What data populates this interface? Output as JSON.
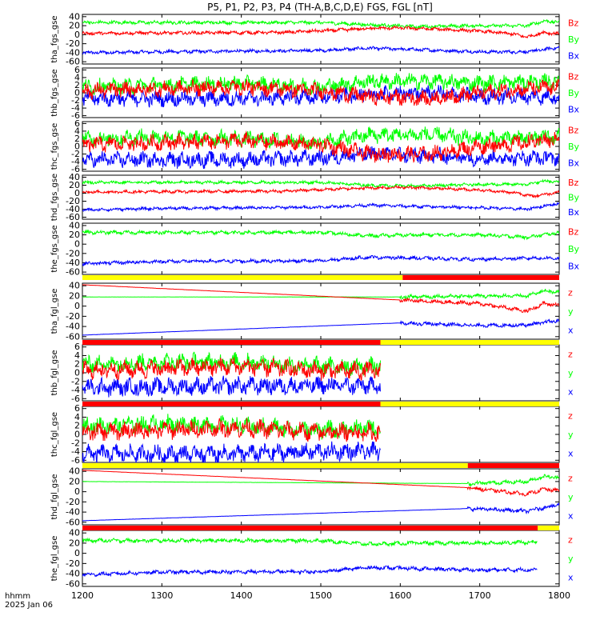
{
  "chart_data": {
    "type": "line",
    "title": "P5, P1, P2, P3, P4 (TH-A,B,C,D,E) FGS, FGL [nT]",
    "x_axis": {
      "label_lines": [
        "hhmm",
        "2025 Jan 06"
      ],
      "ticks": [
        "1200",
        "1300",
        "1400",
        "1500",
        "1600",
        "1700",
        "1800"
      ],
      "tick_values": [
        1200,
        1300,
        1400,
        1500,
        1600,
        1700,
        1800
      ],
      "range": [
        1200,
        1800
      ]
    },
    "colors": {
      "x": "#0000ff",
      "y": "#00ff00",
      "z": "#ff0000",
      "bar_yellow": "#ffff00",
      "bar_red": "#ff0000"
    },
    "panels": [
      {
        "ylabel": "tha_fgs_gse",
        "ylim": [
          -65,
          45
        ],
        "yticks": [
          40,
          20,
          0,
          -20,
          -40,
          -60
        ],
        "legend": [
          "Bz",
          "By",
          "Bx"
        ],
        "x_end": 1800,
        "noise": 3,
        "series": [
          {
            "name": "Bz",
            "color_key": "z",
            "x": [
              1200,
              1450,
              1520,
              1560,
              1600,
              1650,
              1700,
              1740,
              1760,
              1780,
              1800
            ],
            "y": [
              3,
              5,
              10,
              14,
              15,
              12,
              8,
              2,
              -5,
              5,
              2
            ]
          },
          {
            "name": "By",
            "color_key": "y",
            "x": [
              1200,
              1500,
              1560,
              1620,
              1700,
              1760,
              1780,
              1800
            ],
            "y": [
              27,
              27,
              22,
              18,
              20,
              20,
              30,
              28
            ]
          },
          {
            "name": "Bx",
            "color_key": "x",
            "x": [
              1200,
              1300,
              1500,
              1560,
              1620,
              1700,
              1760,
              1780,
              1800
            ],
            "y": [
              -40,
              -38,
              -35,
              -30,
              -33,
              -38,
              -38,
              -33,
              -28
            ]
          }
        ]
      },
      {
        "ylabel": "thb_fgs_gse",
        "ylim": [
          -6.5,
          6.5
        ],
        "yticks": [
          6,
          4,
          2,
          0,
          -2,
          -4,
          -6
        ],
        "legend": [
          "Bz",
          "By",
          "Bx"
        ],
        "x_end": 1800,
        "noise": 1.6,
        "series": [
          {
            "name": "Bz",
            "color_key": "z",
            "x": [
              1200,
              1300,
              1400,
              1500,
              1560,
              1640,
              1700,
              1760,
              1800
            ],
            "y": [
              0.5,
              1,
              1.5,
              0.5,
              -1,
              -1.5,
              0,
              1,
              1.5
            ]
          },
          {
            "name": "By",
            "color_key": "y",
            "x": [
              1200,
              1300,
              1400,
              1500,
              1560,
              1640,
              1700,
              1800
            ],
            "y": [
              1.5,
              2,
              2.5,
              1.5,
              3,
              3,
              2.5,
              3
            ]
          },
          {
            "name": "Bx",
            "color_key": "x",
            "x": [
              1200,
              1400,
              1500,
              1560,
              1640,
              1700,
              1800
            ],
            "y": [
              -1.5,
              -1.5,
              -1,
              -0.5,
              0,
              -1,
              -1
            ]
          }
        ]
      },
      {
        "ylabel": "thc_fgs_gse",
        "ylim": [
          -6.5,
          6.5
        ],
        "yticks": [
          6,
          4,
          2,
          0,
          -2,
          -4,
          -6
        ],
        "legend": [
          "Bz",
          "By",
          "Bx"
        ],
        "x_end": 1800,
        "noise": 1.6,
        "series": [
          {
            "name": "Bz",
            "color_key": "z",
            "x": [
              1200,
              1300,
              1400,
              1500,
              1560,
              1640,
              1700,
              1760,
              1800
            ],
            "y": [
              0.5,
              1,
              1.5,
              0.5,
              -2,
              -2,
              0,
              1,
              2
            ]
          },
          {
            "name": "By",
            "color_key": "y",
            "x": [
              1200,
              1300,
              1400,
              1500,
              1560,
              1640,
              1700,
              1800
            ],
            "y": [
              2,
              2.5,
              2,
              1,
              3,
              3,
              2,
              2.5
            ]
          },
          {
            "name": "Bx",
            "color_key": "x",
            "x": [
              1200,
              1400,
              1500,
              1560,
              1640,
              1700,
              1800
            ],
            "y": [
              -3.5,
              -3.5,
              -3,
              -2,
              -2.5,
              -3,
              -3
            ]
          }
        ]
      },
      {
        "ylabel": "thd_fgs_gse",
        "ylim": [
          -65,
          45
        ],
        "yticks": [
          40,
          20,
          0,
          -20,
          -40,
          -60
        ],
        "legend": [
          "Bz",
          "By",
          "Bx"
        ],
        "x_end": 1800,
        "noise": 3,
        "series": [
          {
            "name": "Bz",
            "color_key": "z",
            "x": [
              1200,
              1450,
              1540,
              1600,
              1650,
              1700,
              1750,
              1765,
              1800
            ],
            "y": [
              3,
              5,
              12,
              15,
              12,
              8,
              0,
              -8,
              3
            ]
          },
          {
            "name": "By",
            "color_key": "y",
            "x": [
              1200,
              1500,
              1560,
              1620,
              1700,
              1760,
              1780,
              1800
            ],
            "y": [
              27,
              27,
              20,
              18,
              22,
              22,
              30,
              28
            ]
          },
          {
            "name": "Bx",
            "color_key": "x",
            "x": [
              1200,
              1300,
              1500,
              1560,
              1640,
              1700,
              1760,
              1800
            ],
            "y": [
              -42,
              -38,
              -35,
              -30,
              -34,
              -36,
              -40,
              -25
            ]
          }
        ]
      },
      {
        "ylabel": "the_fgs_gse",
        "ylim": [
          -65,
          45
        ],
        "yticks": [
          40,
          20,
          0,
          -20,
          -40,
          -60
        ],
        "legend": [
          "Bz",
          "By",
          "Bx"
        ],
        "x_end": 1800,
        "noise": 3,
        "series": [
          {
            "name": "By",
            "color_key": "y",
            "x": [
              1200,
              1500,
              1560,
              1620,
              1700,
              1760,
              1800
            ],
            "y": [
              25,
              25,
              18,
              20,
              20,
              15,
              25
            ]
          },
          {
            "name": "Bx",
            "color_key": "x",
            "x": [
              1200,
              1300,
              1500,
              1560,
              1620,
              1700,
              1760,
              1800
            ],
            "y": [
              -42,
              -37,
              -36,
              -28,
              -30,
              -33,
              -30,
              -30
            ]
          }
        ]
      },
      {
        "ylabel": "tha_fgl_gse",
        "ylim": [
          -65,
          45
        ],
        "yticks": [
          40,
          20,
          0,
          -20,
          -40,
          -60
        ],
        "legend": [
          "z",
          "y",
          "x"
        ],
        "x_end": 1800,
        "noise": 3,
        "noisy_from": 1600,
        "series": [
          {
            "name": "z",
            "color_key": "z",
            "x": [
              1200,
              1600,
              1700,
              1760,
              1780,
              1800
            ],
            "y": [
              42,
              12,
              5,
              -10,
              5,
              2
            ]
          },
          {
            "name": "y",
            "color_key": "y",
            "x": [
              1200,
              1600,
              1700,
              1760,
              1780,
              1800
            ],
            "y": [
              18,
              18,
              20,
              20,
              30,
              28
            ]
          },
          {
            "name": "x",
            "color_key": "x",
            "x": [
              1200,
              1600,
              1700,
              1760,
              1800
            ],
            "y": [
              -57,
              -33,
              -38,
              -37,
              -28
            ]
          }
        ]
      },
      {
        "ylabel": "thb_fgl_gse",
        "ylim": [
          -6.5,
          6.5
        ],
        "yticks": [
          6,
          4,
          2,
          0,
          -2,
          -4,
          -6
        ],
        "legend": [
          "z",
          "y",
          "x"
        ],
        "x_end": 1575,
        "noise": 1.6,
        "series": [
          {
            "name": "z",
            "color_key": "z",
            "x": [
              1200,
              1300,
              1400,
              1500,
              1575
            ],
            "y": [
              0.5,
              1,
              1.5,
              0.5,
              0.5
            ]
          },
          {
            "name": "y",
            "color_key": "y",
            "x": [
              1200,
              1300,
              1400,
              1500,
              1575
            ],
            "y": [
              2,
              2.5,
              2.5,
              1.5,
              1.5
            ]
          },
          {
            "name": "x",
            "color_key": "x",
            "x": [
              1200,
              1400,
              1500,
              1575
            ],
            "y": [
              -3.5,
              -3,
              -3,
              -3
            ]
          }
        ]
      },
      {
        "ylabel": "thc_fgl_gse",
        "ylim": [
          -6.5,
          6.5
        ],
        "yticks": [
          6,
          4,
          2,
          0,
          -2,
          -4,
          -6
        ],
        "legend": [
          "z",
          "y",
          "x"
        ],
        "x_end": 1575,
        "noise": 1.6,
        "series": [
          {
            "name": "z",
            "color_key": "z",
            "x": [
              1200,
              1300,
              1400,
              1500,
              1575
            ],
            "y": [
              0.5,
              1,
              1.5,
              0.5,
              0.5
            ]
          },
          {
            "name": "y",
            "color_key": "y",
            "x": [
              1200,
              1300,
              1400,
              1500,
              1575
            ],
            "y": [
              2,
              2.5,
              2,
              1,
              1.5
            ]
          },
          {
            "name": "x",
            "color_key": "x",
            "x": [
              1200,
              1400,
              1500,
              1575
            ],
            "y": [
              -4.5,
              -4.5,
              -4,
              -4
            ]
          }
        ]
      },
      {
        "ylabel": "thd_fgl_gse",
        "ylim": [
          -65,
          45
        ],
        "yticks": [
          40,
          20,
          0,
          -20,
          -40,
          -60
        ],
        "legend": [
          "z",
          "y",
          "x"
        ],
        "x_end": 1800,
        "noise": 3,
        "noisy_from": 1685,
        "series": [
          {
            "name": "z",
            "color_key": "z",
            "x": [
              1200,
              1685,
              1760,
              1780,
              1800
            ],
            "y": [
              42,
              8,
              -5,
              5,
              2
            ]
          },
          {
            "name": "y",
            "color_key": "y",
            "x": [
              1200,
              1685,
              1760,
              1780,
              1800
            ],
            "y": [
              20,
              16,
              20,
              30,
              28
            ]
          },
          {
            "name": "x",
            "color_key": "x",
            "x": [
              1200,
              1685,
              1760,
              1800
            ],
            "y": [
              -57,
              -33,
              -38,
              -25
            ]
          }
        ]
      },
      {
        "ylabel": "the_fgl_gse",
        "ylim": [
          -65,
          45
        ],
        "yticks": [
          40,
          20,
          0,
          -20,
          -40,
          -60
        ],
        "legend": [
          "z",
          "y",
          "x"
        ],
        "x_end": 1772,
        "noise": 3,
        "series": [
          {
            "name": "y",
            "color_key": "y",
            "x": [
              1200,
              1500,
              1560,
              1620,
              1700,
              1772
            ],
            "y": [
              25,
              25,
              18,
              20,
              20,
              22
            ]
          },
          {
            "name": "x",
            "color_key": "x",
            "x": [
              1200,
              1300,
              1500,
              1560,
              1620,
              1700,
              1772
            ],
            "y": [
              -42,
              -37,
              -36,
              -28,
              -30,
              -33,
              -32
            ]
          }
        ]
      }
    ],
    "status_bars": [
      {
        "above_panel": 5,
        "segments": [
          {
            "from": 1200,
            "to": 1603,
            "color_key": "bar_yellow"
          },
          {
            "from": 1603,
            "to": 1800,
            "color_key": "bar_red"
          }
        ]
      },
      {
        "above_panel": 6,
        "segments": [
          {
            "from": 1200,
            "to": 1575,
            "color_key": "bar_red"
          },
          {
            "from": 1575,
            "to": 1800,
            "color_key": "bar_yellow"
          }
        ]
      },
      {
        "above_panel": 7,
        "segments": [
          {
            "from": 1200,
            "to": 1575,
            "color_key": "bar_red"
          },
          {
            "from": 1575,
            "to": 1800,
            "color_key": "bar_yellow"
          }
        ]
      },
      {
        "above_panel": 8,
        "segments": [
          {
            "from": 1200,
            "to": 1685,
            "color_key": "bar_yellow"
          },
          {
            "from": 1685,
            "to": 1800,
            "color_key": "bar_red"
          }
        ]
      },
      {
        "above_panel": 9,
        "segments": [
          {
            "from": 1200,
            "to": 1773,
            "color_key": "bar_red"
          },
          {
            "from": 1773,
            "to": 1800,
            "color_key": "bar_yellow"
          }
        ]
      }
    ]
  }
}
